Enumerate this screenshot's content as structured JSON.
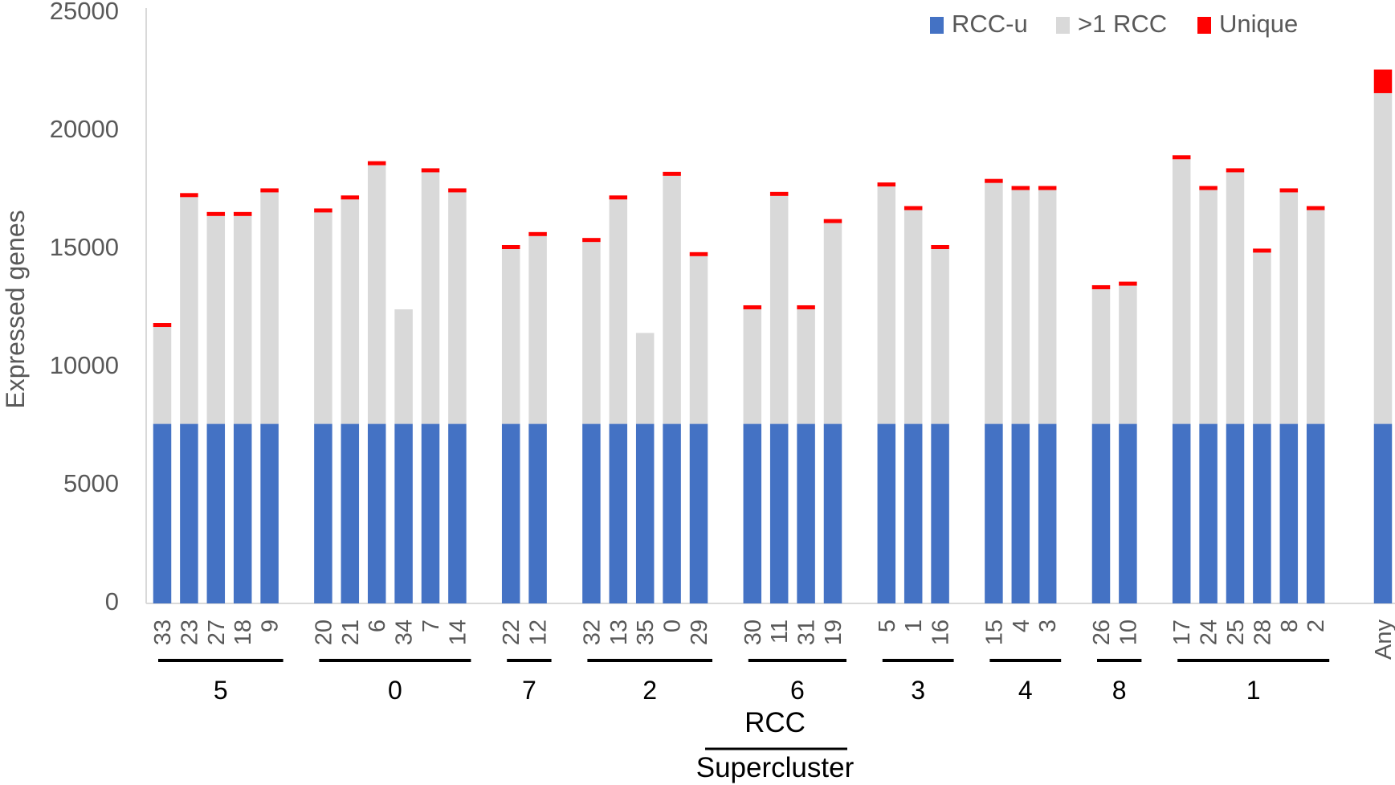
{
  "chart_data": {
    "type": "bar",
    "stacked": true,
    "ylabel": "Expressed genes",
    "ylim": [
      0,
      25000
    ],
    "yticks": [
      0,
      5000,
      10000,
      15000,
      20000,
      25000
    ],
    "x_title_top": "RCC",
    "x_title_bottom": "Supercluster",
    "legend": [
      "RCC-u",
      ">1 RCC",
      "Unique"
    ],
    "colors": {
      "rcc_u": "#4472C4",
      "multi": "#D9D9D9",
      "unique": "#FF0000"
    },
    "groups": [
      {
        "label": "5",
        "categories": [
          "33",
          "23",
          "27",
          "18",
          "9"
        ],
        "rcc_u": [
          7600,
          7600,
          7600,
          7600,
          7600
        ],
        "multi": [
          4100,
          9600,
          8800,
          8800,
          9800
        ],
        "unique": [
          150,
          150,
          150,
          150,
          150
        ]
      },
      {
        "label": "0",
        "categories": [
          "20",
          "21",
          "6",
          "34",
          "7",
          "14"
        ],
        "rcc_u": [
          7600,
          7600,
          7600,
          7600,
          7600,
          7600
        ],
        "multi": [
          8950,
          9500,
          10950,
          4850,
          10650,
          9800
        ],
        "unique": [
          150,
          150,
          150,
          0,
          150,
          150
        ]
      },
      {
        "label": "7",
        "categories": [
          "22",
          "12"
        ],
        "rcc_u": [
          7600,
          7600
        ],
        "multi": [
          7400,
          7950
        ],
        "unique": [
          150,
          150
        ]
      },
      {
        "label": "2",
        "categories": [
          "32",
          "13",
          "35",
          "0",
          "29"
        ],
        "rcc_u": [
          7600,
          7600,
          7600,
          7600,
          7600
        ],
        "multi": [
          7700,
          9500,
          3850,
          10500,
          7100
        ],
        "unique": [
          150,
          150,
          0,
          150,
          150
        ]
      },
      {
        "label": "6",
        "categories": [
          "30",
          "11",
          "31",
          "19"
        ],
        "rcc_u": [
          7600,
          7600,
          7600,
          7600
        ],
        "multi": [
          4850,
          9650,
          4850,
          8500
        ],
        "unique": [
          150,
          150,
          150,
          150
        ]
      },
      {
        "label": "3",
        "categories": [
          "5",
          "1",
          "16"
        ],
        "rcc_u": [
          7600,
          7600,
          7600
        ],
        "multi": [
          10050,
          9050,
          7400
        ],
        "unique": [
          150,
          150,
          150
        ]
      },
      {
        "label": "4",
        "categories": [
          "15",
          "4",
          "3"
        ],
        "rcc_u": [
          7600,
          7600,
          7600
        ],
        "multi": [
          10200,
          9900,
          9900
        ],
        "unique": [
          150,
          150,
          150
        ]
      },
      {
        "label": "8",
        "categories": [
          "26",
          "10"
        ],
        "rcc_u": [
          7600,
          7600
        ],
        "multi": [
          5700,
          5850
        ],
        "unique": [
          150,
          150
        ]
      },
      {
        "label": "1",
        "categories": [
          "17",
          "24",
          "25",
          "28",
          "8",
          "2"
        ],
        "rcc_u": [
          7600,
          7600,
          7600,
          7600,
          7600,
          7600
        ],
        "multi": [
          11200,
          9900,
          10650,
          7250,
          9800,
          9050
        ],
        "unique": [
          150,
          150,
          150,
          150,
          150,
          150
        ]
      }
    ],
    "extra": {
      "category": "Any",
      "rcc_u": 7600,
      "multi": 14000,
      "unique": 1000
    }
  }
}
